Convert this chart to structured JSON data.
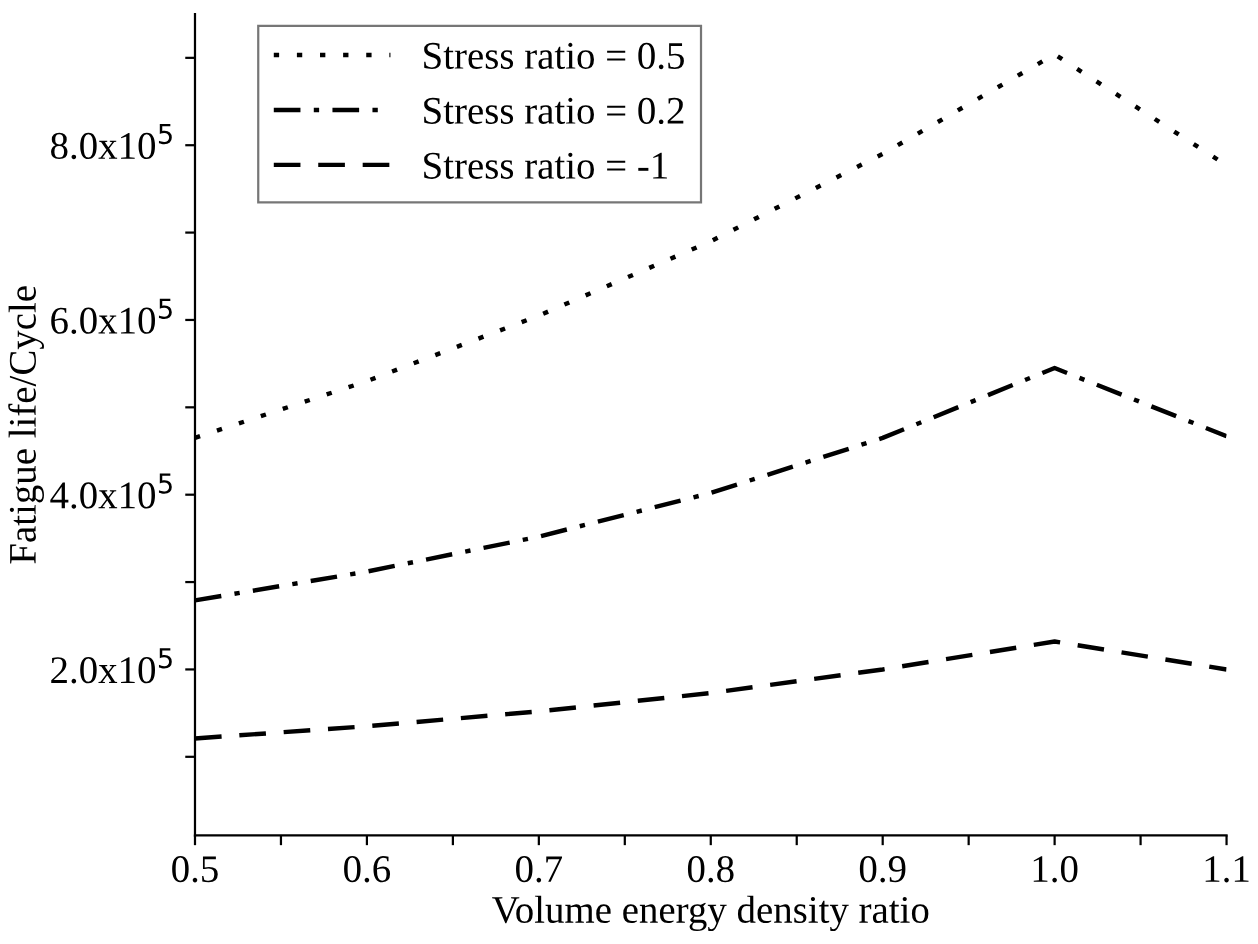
{
  "chart_data": {
    "type": "line",
    "xlabel": "Volume energy density ratio",
    "ylabel": "Fatigue life/Cycle",
    "x": [
      0.5,
      0.6,
      0.7,
      0.8,
      0.9,
      1.0,
      1.1
    ],
    "series": [
      {
        "name": "Stress ratio = 0.5",
        "color": "#000000",
        "line_style": "dotted",
        "values": [
          465000,
          530000,
          605000,
          690000,
          790000,
          904000,
          777000
        ]
      },
      {
        "name": "Stress ratio = 0.2",
        "color": "#000000",
        "line_style": "dashdot",
        "values": [
          279000,
          312000,
          352000,
          402000,
          465000,
          545000,
          467000
        ]
      },
      {
        "name": "Stress ratio = -1",
        "color": "#000000",
        "line_style": "dashed",
        "values": [
          121000,
          135000,
          152000,
          173000,
          200000,
          232000,
          200000
        ]
      }
    ],
    "xlim": [
      0.5,
      1.1
    ],
    "xticks": [
      {
        "value": 0.5,
        "label": "0.5"
      },
      {
        "value": 0.55,
        "label": null
      },
      {
        "value": 0.6,
        "label": "0.6"
      },
      {
        "value": 0.65,
        "label": null
      },
      {
        "value": 0.7,
        "label": "0.7"
      },
      {
        "value": 0.75,
        "label": null
      },
      {
        "value": 0.8,
        "label": "0.8"
      },
      {
        "value": 0.85,
        "label": null
      },
      {
        "value": 0.9,
        "label": "0.9"
      },
      {
        "value": 0.95,
        "label": null
      },
      {
        "value": 1.0,
        "label": "1.0"
      },
      {
        "value": 1.05,
        "label": null
      },
      {
        "value": 1.1,
        "label": "1.1"
      }
    ],
    "ylim": [
      10000,
      950000
    ],
    "yticks": [
      {
        "value": 100000,
        "label": null
      },
      {
        "value": 200000,
        "label": "2.0x10$^{5}$"
      },
      {
        "value": 300000,
        "label": null
      },
      {
        "value": 400000,
        "label": "4.0x10$^{5}$"
      },
      {
        "value": 500000,
        "label": null
      },
      {
        "value": 600000,
        "label": "6.0x10$^{5}$"
      },
      {
        "value": 700000,
        "label": null
      },
      {
        "value": 800000,
        "label": "8.0x10$^{5}$"
      },
      {
        "value": 900000,
        "label": null
      }
    ],
    "grid": false,
    "legend": "top left",
    "marker": "none"
  }
}
